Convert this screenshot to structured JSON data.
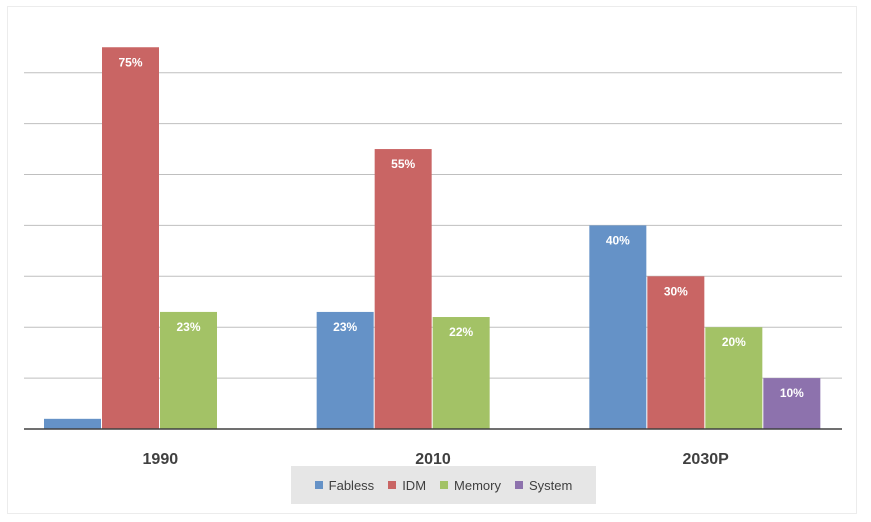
{
  "chart_data": {
    "type": "bar",
    "categories": [
      "1990",
      "2010",
      "2030P"
    ],
    "series": [
      {
        "name": "Fabless",
        "color": "#6592c7",
        "values": [
          2,
          23,
          40
        ],
        "labels": [
          "",
          "23%",
          "40%"
        ]
      },
      {
        "name": "IDM",
        "color": "#c96564",
        "values": [
          75,
          55,
          30
        ],
        "labels": [
          "75%",
          "55%",
          "30%"
        ]
      },
      {
        "name": "Memory",
        "color": "#a3c266",
        "values": [
          23,
          22,
          20
        ],
        "labels": [
          "23%",
          "22%",
          "20%"
        ]
      },
      {
        "name": "System",
        "color": "#8d72ad",
        "values": [
          null,
          null,
          10
        ],
        "labels": [
          "",
          "",
          "10%"
        ]
      }
    ],
    "ylim": [
      0,
      80
    ],
    "gridlines": [
      10,
      20,
      30,
      40,
      50,
      60,
      70
    ],
    "grid": true,
    "legend_position": "bottom"
  }
}
